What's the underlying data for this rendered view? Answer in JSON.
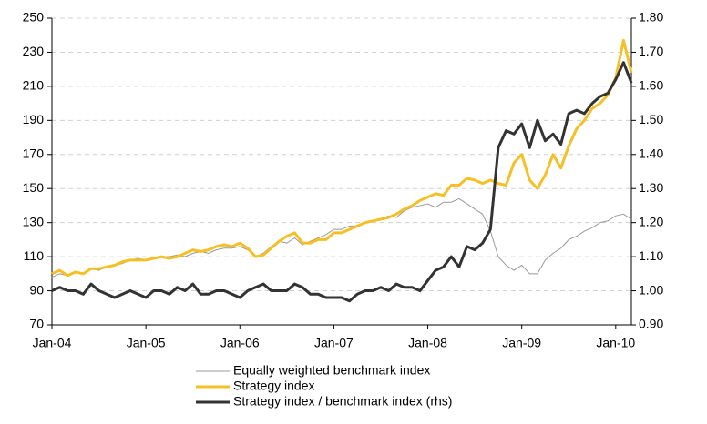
{
  "chart_data": {
    "type": "line",
    "x": [
      "2004-01",
      "2004-02",
      "2004-03",
      "2004-04",
      "2004-05",
      "2004-06",
      "2004-07",
      "2004-08",
      "2004-09",
      "2004-10",
      "2004-11",
      "2004-12",
      "2005-01",
      "2005-02",
      "2005-03",
      "2005-04",
      "2005-05",
      "2005-06",
      "2005-07",
      "2005-08",
      "2005-09",
      "2005-10",
      "2005-11",
      "2005-12",
      "2006-01",
      "2006-02",
      "2006-03",
      "2006-04",
      "2006-05",
      "2006-06",
      "2006-07",
      "2006-08",
      "2006-09",
      "2006-10",
      "2006-11",
      "2006-12",
      "2007-01",
      "2007-02",
      "2007-03",
      "2007-04",
      "2007-05",
      "2007-06",
      "2007-07",
      "2007-08",
      "2007-09",
      "2007-10",
      "2007-11",
      "2007-12",
      "2008-01",
      "2008-02",
      "2008-03",
      "2008-04",
      "2008-05",
      "2008-06",
      "2008-07",
      "2008-08",
      "2008-09",
      "2008-10",
      "2008-11",
      "2008-12",
      "2009-01",
      "2009-02",
      "2009-03",
      "2009-04",
      "2009-05",
      "2009-06",
      "2009-07",
      "2009-08",
      "2009-09",
      "2009-10",
      "2009-11",
      "2009-12",
      "2010-01",
      "2010-02",
      "2010-03"
    ],
    "xlim": [
      "2004-01",
      "2010-03"
    ],
    "xticks": [
      {
        "value": "2004-01",
        "label": "Jan-04"
      },
      {
        "value": "2005-01",
        "label": "Jan-05"
      },
      {
        "value": "2006-01",
        "label": "Jan-06"
      },
      {
        "value": "2007-01",
        "label": "Jan-07"
      },
      {
        "value": "2008-01",
        "label": "Jan-08"
      },
      {
        "value": "2009-01",
        "label": "Jan-09"
      },
      {
        "value": "2010-01",
        "label": "Jan-10"
      }
    ],
    "ylim": [
      70,
      250
    ],
    "yticks": [
      70,
      90,
      110,
      130,
      150,
      170,
      190,
      210,
      230,
      250
    ],
    "y2lim": [
      0.9,
      1.8
    ],
    "y2ticks": [
      {
        "value": 0.9,
        "label": "0.90"
      },
      {
        "value": 1.0,
        "label": "1.00"
      },
      {
        "value": 1.1,
        "label": "1.10"
      },
      {
        "value": 1.2,
        "label": "1.20"
      },
      {
        "value": 1.3,
        "label": "1.30"
      },
      {
        "value": 1.4,
        "label": "1.40"
      },
      {
        "value": 1.5,
        "label": "1.50"
      },
      {
        "value": 1.6,
        "label": "1.60"
      },
      {
        "value": 1.7,
        "label": "1.70"
      },
      {
        "value": 1.8,
        "label": "1.80"
      }
    ],
    "grid": true,
    "series": [
      {
        "name": "Equally weighted benchmark index",
        "color": "#999999",
        "width": 1,
        "values": [
          98,
          100,
          99,
          101,
          100,
          103,
          102,
          104,
          105,
          106,
          108,
          109,
          108,
          109,
          110,
          110,
          111,
          110,
          112,
          113,
          112,
          114,
          115,
          115,
          116,
          114,
          110,
          112,
          116,
          119,
          118,
          121,
          117,
          119,
          121,
          123,
          126,
          126,
          128,
          128,
          130,
          131,
          132,
          134,
          133,
          137,
          139,
          140,
          141,
          139,
          142,
          142,
          144,
          141,
          138,
          135,
          125,
          110,
          105,
          102,
          105,
          100,
          100,
          108,
          112,
          115,
          120,
          122,
          125,
          127,
          130,
          131,
          134,
          135,
          132
        ]
      },
      {
        "name": "Strategy index",
        "color": "#f5c026",
        "width": 3,
        "values": [
          100,
          102,
          99,
          101,
          100,
          103,
          103,
          104,
          105,
          107,
          108,
          108,
          108,
          109,
          110,
          109,
          110,
          112,
          114,
          113,
          114,
          116,
          117,
          116,
          118,
          115,
          110,
          111,
          115,
          119,
          122,
          124,
          118,
          118,
          120,
          120,
          124,
          124,
          126,
          128,
          130,
          131,
          132,
          133,
          135,
          138,
          140,
          143,
          145,
          147,
          146,
          152,
          152,
          156,
          155,
          153,
          155,
          153,
          152,
          165,
          170,
          155,
          150,
          158,
          170,
          162,
          175,
          185,
          190,
          197,
          200,
          205,
          215,
          237,
          218
        ]
      },
      {
        "name": "Strategy index / benchmark index (rhs)",
        "color": "#333333",
        "width": 3,
        "axis": "y2",
        "values": [
          1.0,
          1.01,
          1.0,
          1.0,
          0.99,
          1.02,
          1.0,
          0.99,
          0.98,
          0.99,
          1.0,
          0.99,
          0.98,
          1.0,
          1.0,
          0.99,
          1.01,
          1.0,
          1.02,
          0.99,
          0.99,
          1.0,
          1.0,
          0.99,
          0.98,
          1.0,
          1.01,
          1.02,
          1.0,
          1.0,
          1.0,
          1.02,
          1.01,
          0.99,
          0.99,
          0.98,
          0.98,
          0.98,
          0.97,
          0.99,
          1.0,
          1.0,
          1.01,
          1.0,
          1.02,
          1.01,
          1.01,
          1.0,
          1.03,
          1.06,
          1.07,
          1.1,
          1.07,
          1.13,
          1.12,
          1.14,
          1.18,
          1.42,
          1.47,
          1.46,
          1.49,
          1.42,
          1.5,
          1.44,
          1.46,
          1.43,
          1.52,
          1.53,
          1.52,
          1.55,
          1.57,
          1.58,
          1.62,
          1.67,
          1.61
        ]
      }
    ]
  }
}
